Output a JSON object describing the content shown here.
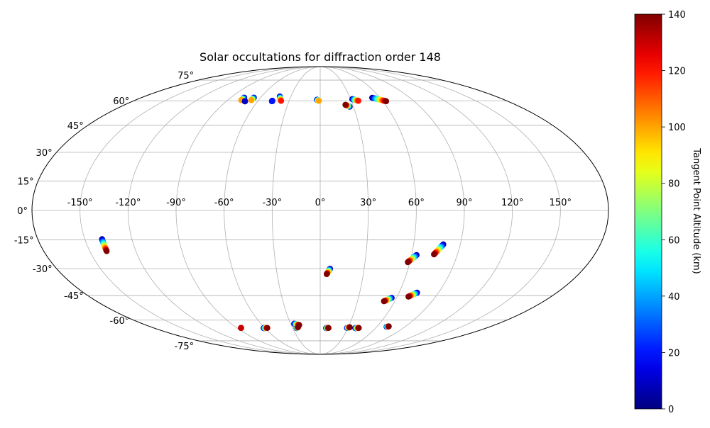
{
  "chart_data": {
    "type": "scatter",
    "projection": "mollweide",
    "title": "Solar occultations for diffraction order 148",
    "colorbar": {
      "label": "Tangent Point Altitude (km)",
      "range": [
        0,
        140
      ],
      "ticks": [
        0,
        20,
        40,
        60,
        80,
        100,
        120,
        140
      ],
      "tick_labels": [
        "0",
        "20",
        "40",
        "60",
        "80",
        "100",
        "120",
        "140"
      ],
      "colormap": "jet",
      "placement": "right"
    },
    "lon_ticks": [
      {
        "value": -150,
        "label": "-150°"
      },
      {
        "value": -120,
        "label": "-120°"
      },
      {
        "value": -90,
        "label": "-90°"
      },
      {
        "value": -60,
        "label": "-60°"
      },
      {
        "value": -30,
        "label": "-30°"
      },
      {
        "value": 0,
        "label": "0°"
      },
      {
        "value": 30,
        "label": "30°"
      },
      {
        "value": 60,
        "label": "60°"
      },
      {
        "value": 90,
        "label": "90°"
      },
      {
        "value": 120,
        "label": "120°"
      },
      {
        "value": 150,
        "label": "150°"
      }
    ],
    "lat_ticks": [
      {
        "value": 75,
        "label": "75°"
      },
      {
        "value": 60,
        "label": "60°"
      },
      {
        "value": 45,
        "label": "45°"
      },
      {
        "value": 30,
        "label": "30°"
      },
      {
        "value": 15,
        "label": "15°"
      },
      {
        "value": 0,
        "label": "0°"
      },
      {
        "value": -15,
        "label": "-15°"
      },
      {
        "value": -30,
        "label": "-30°"
      },
      {
        "value": -45,
        "label": "-45°"
      },
      {
        "value": -60,
        "label": "-60°"
      },
      {
        "value": -75,
        "label": "-75°"
      }
    ],
    "grid": true,
    "occultations": [
      {
        "lon_start": -76.5,
        "lat_start": 62.1,
        "lon_end": -76.8,
        "lat_end": 60.4,
        "alt_start": 0,
        "alt_end": 100
      },
      {
        "lon_start": -72.2,
        "lat_start": 59.7,
        "lon_end": -72.2,
        "lat_end": 59.7,
        "alt_start": 10,
        "alt_end": 10
      },
      {
        "lon_start": -66.8,
        "lat_start": 62.1,
        "lon_end": -67.1,
        "lat_end": 60.4,
        "alt_start": 0,
        "alt_end": 100
      },
      {
        "lon_start": -46.2,
        "lat_start": 60.0,
        "lon_end": -46.3,
        "lat_end": 59.7,
        "alt_start": 0,
        "alt_end": 20
      },
      {
        "lon_start": -41.4,
        "lat_start": 62.9,
        "lon_end": -37.7,
        "lat_end": 59.9,
        "alt_start": 0,
        "alt_end": 120
      },
      {
        "lon_start": -3.2,
        "lat_start": 60.7,
        "lon_end": -1.3,
        "lat_end": 60.0,
        "alt_start": 0,
        "alt_end": 100
      },
      {
        "lon_start": 26.6,
        "lat_start": 56.2,
        "lon_end": 23.2,
        "lat_end": 57.4,
        "alt_start": 0,
        "alt_end": 140
      },
      {
        "lon_start": 31.6,
        "lat_start": 61.1,
        "lon_end": 36.8,
        "lat_end": 60.0,
        "alt_start": 0,
        "alt_end": 120
      },
      {
        "lon_start": 52.2,
        "lat_start": 62.0,
        "lon_end": 63.3,
        "lat_end": 59.7,
        "alt_start": 0,
        "alt_end": 140
      },
      {
        "lon_start": -139.0,
        "lat_start": -14.6,
        "lon_end": -139.0,
        "lat_end": -20.8,
        "alt_start": 0,
        "alt_end": 140
      },
      {
        "lon_start": 63.3,
        "lat_start": -22.8,
        "lon_end": 58.6,
        "lat_end": -26.6,
        "alt_start": 0,
        "alt_end": 140
      },
      {
        "lon_start": 79.1,
        "lat_start": -17.3,
        "lon_end": 74.6,
        "lat_end": -22.5,
        "alt_start": 0,
        "alt_end": 140
      },
      {
        "lon_start": 6.7,
        "lat_start": -30.1,
        "lon_end": 4.5,
        "lat_end": -33.0,
        "alt_start": 0,
        "alt_end": 140
      },
      {
        "lon_start": 56.2,
        "lat_start": -46.3,
        "lon_end": 51.3,
        "lat_end": -48.3,
        "alt_start": 0,
        "alt_end": 140
      },
      {
        "lon_start": 73.7,
        "lat_start": -43.3,
        "lon_end": 68.8,
        "lat_end": -45.6,
        "alt_start": 0,
        "alt_end": 140
      },
      {
        "lon_start": -85.7,
        "lat_start": -65.3,
        "lon_end": -85.7,
        "lat_end": -65.3,
        "alt_start": 130,
        "alt_end": 130
      },
      {
        "lon_start": -61.4,
        "lat_start": -65.4,
        "lon_end": -57.2,
        "lat_end": -65.3,
        "alt_start": 0,
        "alt_end": 140
      },
      {
        "lon_start": -26.4,
        "lat_start": -62.4,
        "lon_end": -21.7,
        "lat_end": -63.3,
        "alt_start": 0,
        "alt_end": 140
      },
      {
        "lon_start": -25.6,
        "lat_start": -65.4,
        "lon_end": -23.6,
        "lat_end": -64.7,
        "alt_start": 0,
        "alt_end": 140
      },
      {
        "lon_start": 6.4,
        "lat_start": -65.4,
        "lon_end": 9.0,
        "lat_end": -65.3,
        "alt_start": 0,
        "alt_end": 140
      },
      {
        "lon_start": 29.0,
        "lat_start": -65.3,
        "lon_end": 31.6,
        "lat_end": -64.8,
        "alt_start": 0,
        "alt_end": 140
      },
      {
        "lon_start": 38.0,
        "lat_start": -65.4,
        "lon_end": 41.8,
        "lat_end": -65.3,
        "alt_start": 0,
        "alt_end": 140
      },
      {
        "lon_start": 70.5,
        "lat_start": -64.5,
        "lon_end": 72.3,
        "lat_end": -64.2,
        "alt_start": 0,
        "alt_end": 140
      }
    ]
  }
}
